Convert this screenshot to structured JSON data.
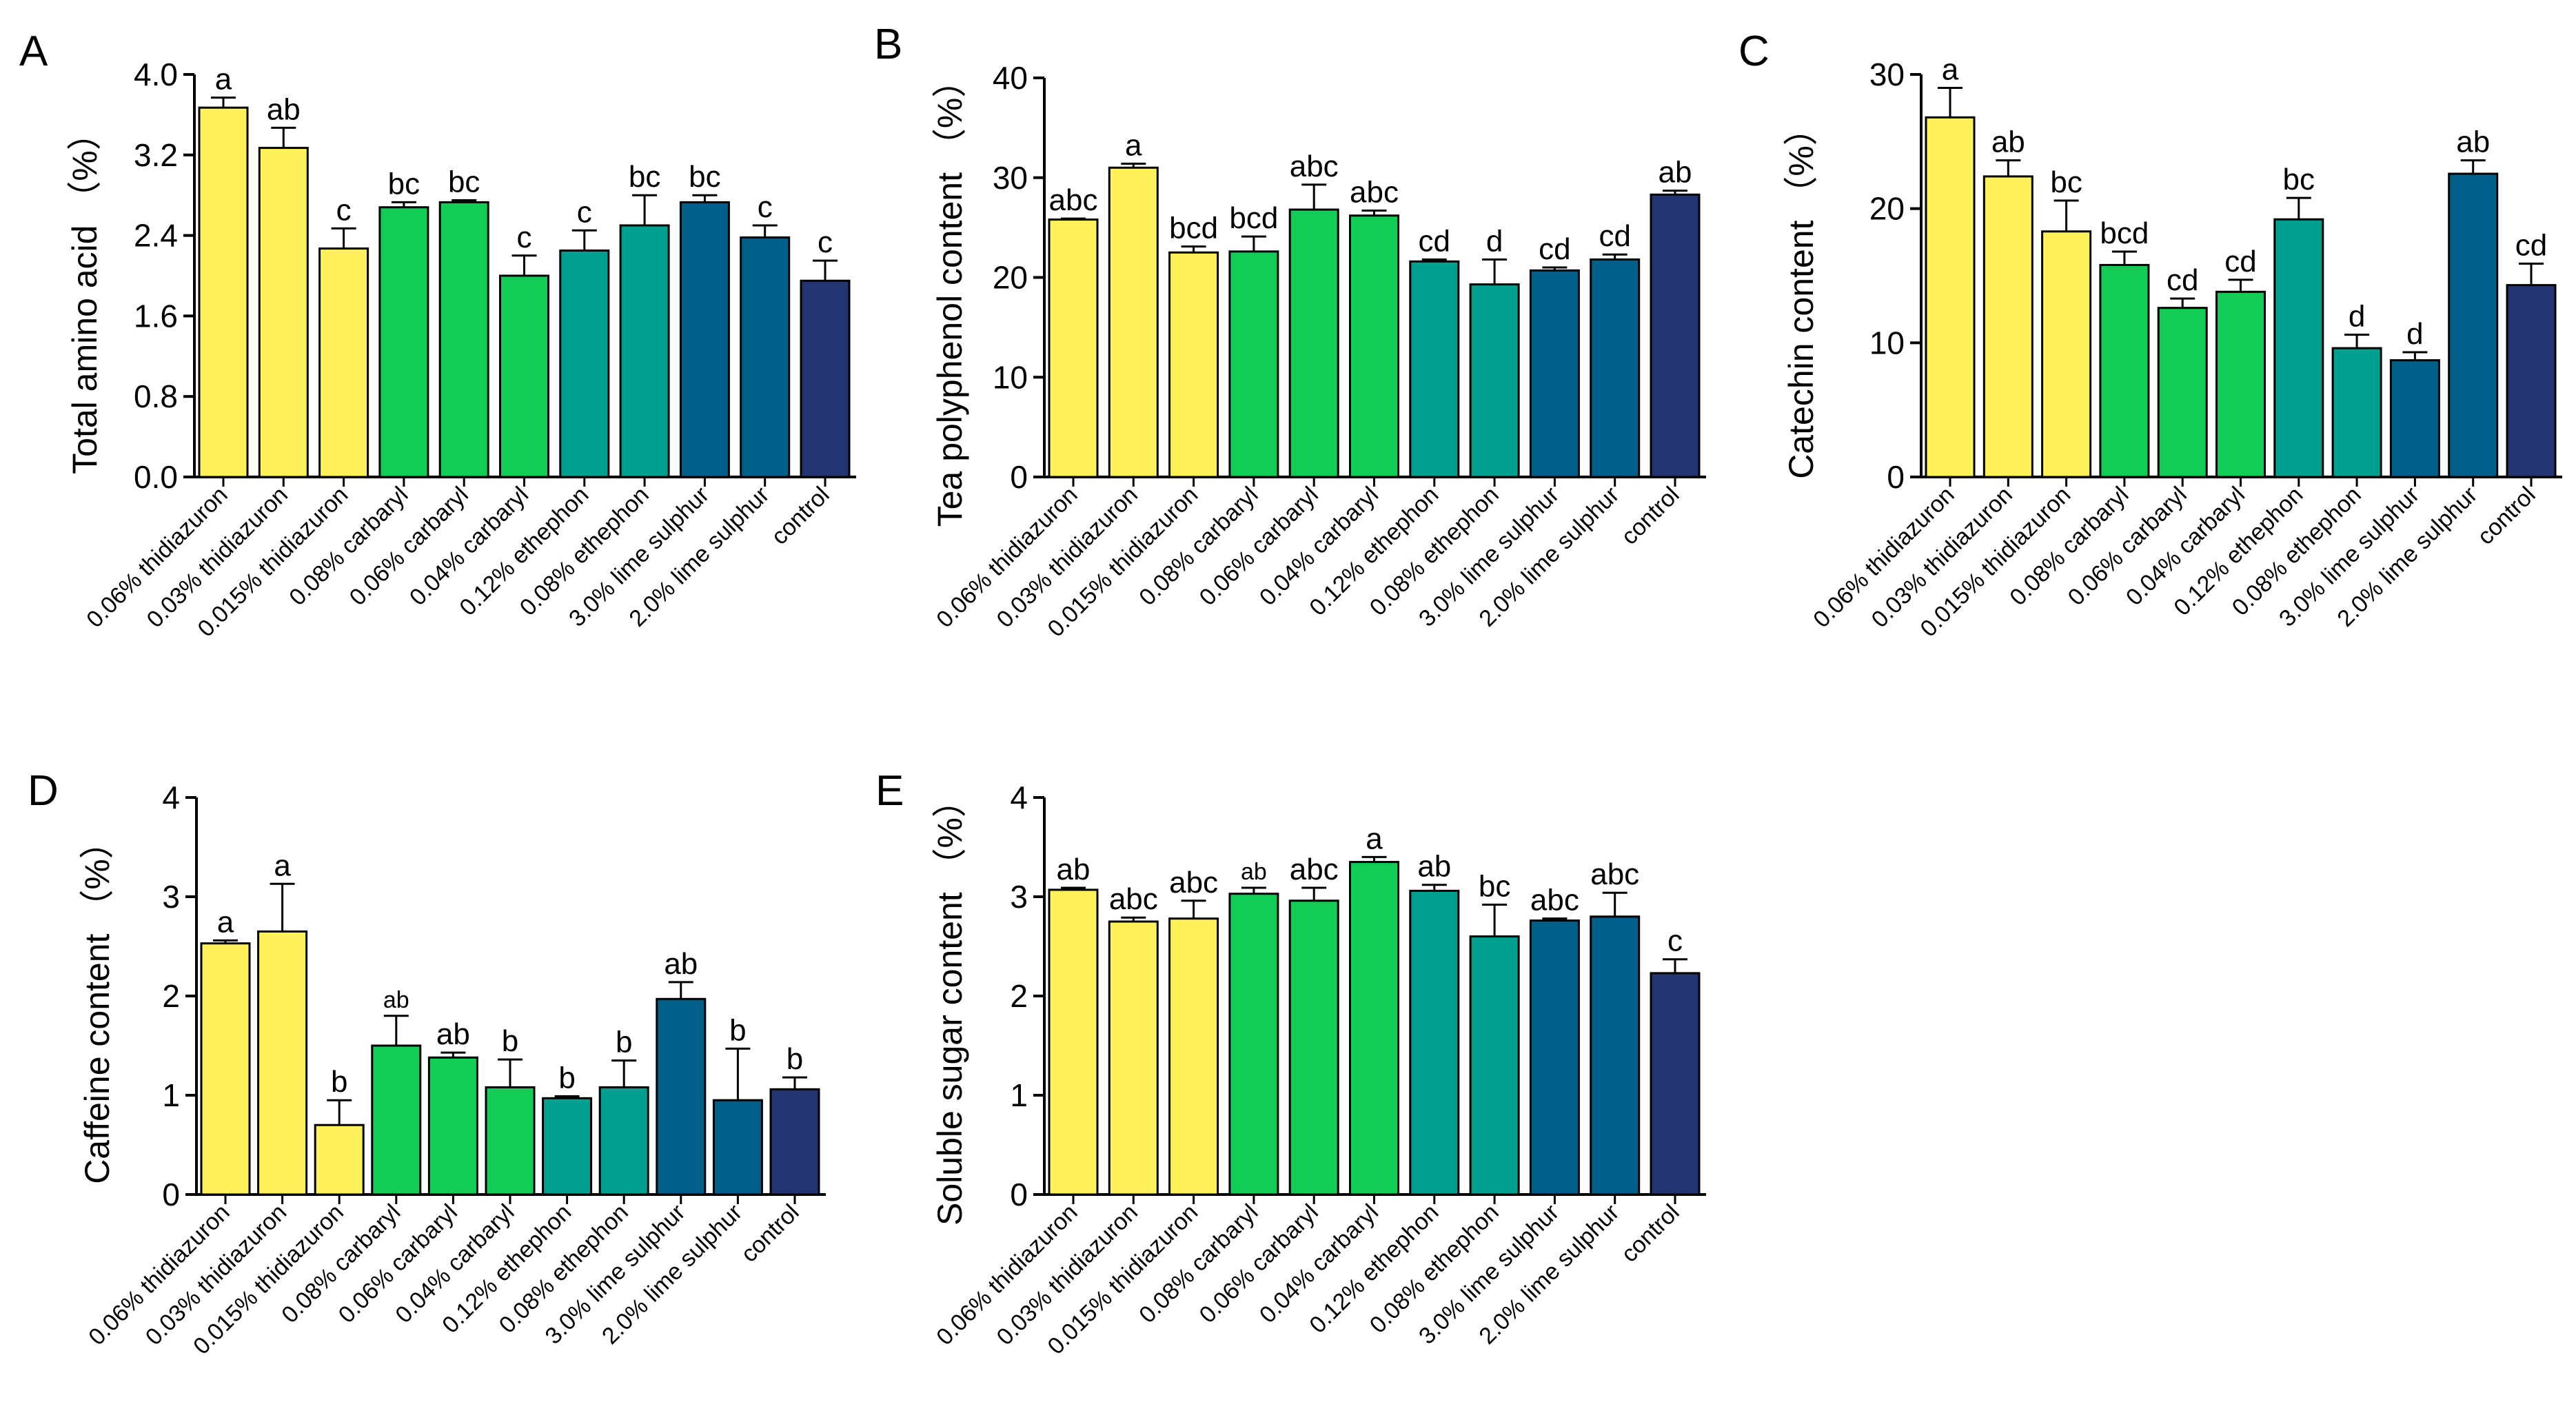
{
  "colors": {
    "thidiazuron": "#FFF15A",
    "carbaryl": "#11CC55",
    "ethephon": "#00A090",
    "lime_sulphur": "#005F88",
    "control": "#223570"
  },
  "panels": [
    {
      "id": "A",
      "label": "A",
      "ylabel": "Total amino acid （%）",
      "ylim": [
        0,
        4.0
      ],
      "yticks": [
        "0.0",
        "0.8",
        "1.6",
        "2.4",
        "3.2",
        "4.0"
      ],
      "ytick_values": [
        0,
        0.8,
        1.6,
        2.4,
        3.2,
        4.0
      ]
    },
    {
      "id": "B",
      "label": "B",
      "ylabel": "Tea polyphenol content （%）",
      "ylim": [
        0,
        40
      ],
      "yticks": [
        "0",
        "10",
        "20",
        "30",
        "40"
      ],
      "ytick_values": [
        0,
        10,
        20,
        30,
        40
      ]
    },
    {
      "id": "C",
      "label": "C",
      "ylabel": "Catechin content （%）",
      "ylim": [
        0,
        30
      ],
      "yticks": [
        "0",
        "10",
        "20",
        "30"
      ],
      "ytick_values": [
        0,
        10,
        20,
        30
      ]
    },
    {
      "id": "D",
      "label": "D",
      "ylabel": "Caffeine content （%）",
      "ylim": [
        0,
        4
      ],
      "yticks": [
        "0",
        "1",
        "2",
        "3",
        "4"
      ],
      "ytick_values": [
        0,
        1,
        2,
        3,
        4
      ]
    },
    {
      "id": "E",
      "label": "E",
      "ylabel": "Soluble sugar content （%）",
      "ylim": [
        0,
        4
      ],
      "yticks": [
        "0",
        "1",
        "2",
        "3",
        "4"
      ],
      "ytick_values": [
        0,
        1,
        2,
        3,
        4
      ]
    }
  ],
  "chart_data": [
    {
      "type": "bar",
      "panel": "A",
      "ylabel": "Total amino acid （%）",
      "ylim": [
        0,
        4.0
      ],
      "categories": [
        "0.06% thidiazuron",
        "0.03% thidiazuron",
        "0.015% thidiazuron",
        "0.08% carbaryl",
        "0.06% carbaryl",
        "0.04% carbaryl",
        "0.12% ethephon",
        "0.08% ethephon",
        "3.0% lime sulphur",
        "2.0% lime sulphur",
        "control"
      ],
      "groups": [
        "thidiazuron",
        "thidiazuron",
        "thidiazuron",
        "carbaryl",
        "carbaryl",
        "carbaryl",
        "ethephon",
        "ethephon",
        "lime_sulphur",
        "lime_sulphur",
        "control"
      ],
      "values": [
        3.67,
        3.27,
        2.27,
        2.68,
        2.73,
        2.0,
        2.25,
        2.5,
        2.73,
        2.38,
        1.95
      ],
      "errors": [
        0.1,
        0.2,
        0.2,
        0.05,
        0.02,
        0.2,
        0.2,
        0.3,
        0.07,
        0.12,
        0.2
      ],
      "letters": [
        "a",
        "ab",
        "c",
        "bc",
        "bc",
        "c",
        "c",
        "bc",
        "bc",
        "c",
        "c"
      ]
    },
    {
      "type": "bar",
      "panel": "B",
      "ylabel": "Tea polyphenol content （%）",
      "ylim": [
        0,
        40
      ],
      "categories": [
        "0.06% thidiazuron",
        "0.03% thidiazuron",
        "0.015% thidiazuron",
        "0.08% carbaryl",
        "0.06% carbaryl",
        "0.04% carbaryl",
        "0.12% ethephon",
        "0.08% ethephon",
        "3.0% lime sulphur",
        "2.0% lime sulphur",
        "control"
      ],
      "groups": [
        "thidiazuron",
        "thidiazuron",
        "thidiazuron",
        "carbaryl",
        "carbaryl",
        "carbaryl",
        "ethephon",
        "ethephon",
        "lime_sulphur",
        "lime_sulphur",
        "control"
      ],
      "values": [
        25.8,
        31.0,
        22.5,
        22.6,
        26.8,
        26.2,
        21.6,
        19.3,
        20.7,
        21.8,
        28.3
      ],
      "errors": [
        0.1,
        0.4,
        0.6,
        1.5,
        2.5,
        0.5,
        0.2,
        2.5,
        0.3,
        0.5,
        0.4
      ],
      "letters": [
        "abc",
        "a",
        "bcd",
        "bcd",
        "abc",
        "abc",
        "cd",
        "d",
        "cd",
        "cd",
        "ab"
      ]
    },
    {
      "type": "bar",
      "panel": "C",
      "ylabel": "Catechin content （%）",
      "ylim": [
        0,
        30
      ],
      "categories": [
        "0.06% thidiazuron",
        "0.03% thidiazuron",
        "0.015% thidiazuron",
        "0.08% carbaryl",
        "0.06% carbaryl",
        "0.04% carbaryl",
        "0.12% ethephon",
        "0.08% ethephon",
        "3.0% lime sulphur",
        "2.0% lime sulphur",
        "control"
      ],
      "groups": [
        "thidiazuron",
        "thidiazuron",
        "thidiazuron",
        "carbaryl",
        "carbaryl",
        "carbaryl",
        "ethephon",
        "ethephon",
        "lime_sulphur",
        "lime_sulphur",
        "control"
      ],
      "values": [
        26.8,
        22.4,
        18.3,
        15.8,
        12.6,
        13.8,
        19.2,
        9.6,
        8.7,
        22.6,
        14.3
      ],
      "errors": [
        2.2,
        1.2,
        2.3,
        1.0,
        0.7,
        0.9,
        1.6,
        1.0,
        0.6,
        1.0,
        1.6
      ],
      "letters": [
        "a",
        "ab",
        "bc",
        "bcd",
        "cd",
        "cd",
        "bc",
        "d",
        "d",
        "ab",
        "cd"
      ]
    },
    {
      "type": "bar",
      "panel": "D",
      "ylabel": "Caffeine content （%）",
      "ylim": [
        0,
        4
      ],
      "categories": [
        "0.06% thidiazuron",
        "0.03% thidiazuron",
        "0.015% thidiazuron",
        "0.08% carbaryl",
        "0.06% carbaryl",
        "0.04% carbaryl",
        "0.12% ethephon",
        "0.08% ethephon",
        "3.0% lime sulphur",
        "2.0% lime sulphur",
        "control"
      ],
      "groups": [
        "thidiazuron",
        "thidiazuron",
        "thidiazuron",
        "carbaryl",
        "carbaryl",
        "carbaryl",
        "ethephon",
        "ethephon",
        "lime_sulphur",
        "lime_sulphur",
        "control"
      ],
      "values": [
        2.53,
        2.65,
        0.7,
        1.5,
        1.38,
        1.08,
        0.97,
        1.08,
        1.97,
        0.95,
        1.06
      ],
      "errors": [
        0.03,
        0.48,
        0.25,
        0.3,
        0.05,
        0.28,
        0.02,
        0.27,
        0.17,
        0.52,
        0.12
      ],
      "letters": [
        "a",
        "a",
        "b",
        "ab",
        "ab",
        "b",
        "b",
        "b",
        "ab",
        "b",
        "b"
      ],
      "letter_small": [
        false,
        false,
        false,
        true,
        false,
        false,
        false,
        false,
        false,
        false,
        false
      ]
    },
    {
      "type": "bar",
      "panel": "E",
      "ylabel": "Soluble sugar content （%）",
      "ylim": [
        0,
        4
      ],
      "categories": [
        "0.06% thidiazuron",
        "0.03% thidiazuron",
        "0.015% thidiazuron",
        "0.08% carbaryl",
        "0.06% carbaryl",
        "0.04% carbaryl",
        "0.12% ethephon",
        "0.08% ethephon",
        "3.0% lime sulphur",
        "2.0% lime sulphur",
        "control"
      ],
      "groups": [
        "thidiazuron",
        "thidiazuron",
        "thidiazuron",
        "carbaryl",
        "carbaryl",
        "carbaryl",
        "ethephon",
        "ethephon",
        "lime_sulphur",
        "lime_sulphur",
        "control"
      ],
      "values": [
        3.07,
        2.75,
        2.78,
        3.03,
        2.96,
        3.35,
        3.06,
        2.6,
        2.76,
        2.8,
        2.23
      ],
      "errors": [
        0.02,
        0.04,
        0.18,
        0.06,
        0.13,
        0.05,
        0.06,
        0.32,
        0.02,
        0.24,
        0.14
      ],
      "letters": [
        "ab",
        "abc",
        "abc",
        "ab",
        "abc",
        "a",
        "ab",
        "bc",
        "abc",
        "abc",
        "c"
      ],
      "letter_small": [
        false,
        false,
        false,
        true,
        false,
        false,
        false,
        false,
        false,
        false,
        false
      ]
    }
  ]
}
